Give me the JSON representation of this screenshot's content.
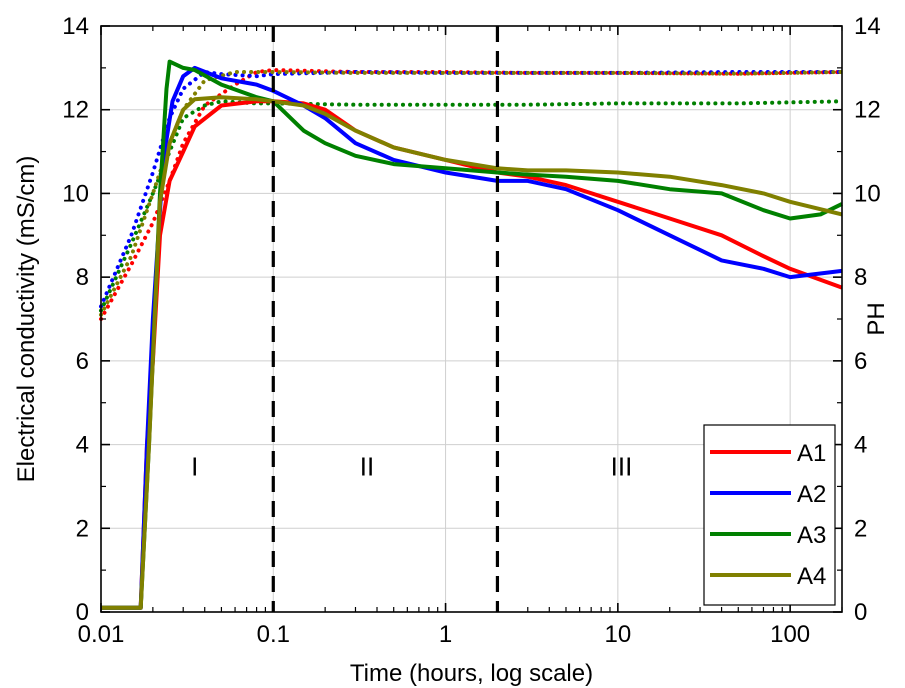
{
  "chart_data": {
    "type": "line",
    "xlabel": "Time (hours, log scale)",
    "ylabel_left": "Electrical conductivity (mS/cm)",
    "ylabel_right": "PH",
    "x_scale": "log",
    "xlim": [
      0.01,
      200
    ],
    "ylim_left": [
      0,
      14
    ],
    "ylim_right": [
      0,
      14
    ],
    "grid": true,
    "legend_position": "bottom-right",
    "x_ticks": [
      "0.01",
      "0.1",
      "1",
      "10",
      "100"
    ],
    "y_ticks": [
      "0",
      "2",
      "4",
      "6",
      "8",
      "10",
      "12",
      "14"
    ],
    "phase_boundaries_hours": [
      0.1,
      2
    ],
    "phase_labels": [
      {
        "text": "I",
        "x": 0.035,
        "y": 3.5
      },
      {
        "text": "II",
        "x": 0.35,
        "y": 3.5
      },
      {
        "text": "III",
        "x": 10.5,
        "y": 3.5
      }
    ],
    "series": [
      {
        "name": "A1",
        "color": "#ff0000",
        "conductivity": [
          [
            0.01,
            0.1
          ],
          [
            0.017,
            0.1
          ],
          [
            0.0185,
            4
          ],
          [
            0.02,
            6
          ],
          [
            0.022,
            9
          ],
          [
            0.025,
            10.3
          ],
          [
            0.03,
            11
          ],
          [
            0.035,
            11.6
          ],
          [
            0.05,
            12.1
          ],
          [
            0.08,
            12.2
          ],
          [
            0.1,
            12.2
          ],
          [
            0.15,
            12.15
          ],
          [
            0.2,
            12
          ],
          [
            0.3,
            11.5
          ],
          [
            0.5,
            11.1
          ],
          [
            1,
            10.8
          ],
          [
            2,
            10.5
          ],
          [
            3,
            10.4
          ],
          [
            5,
            10.2
          ],
          [
            10,
            9.8
          ],
          [
            20,
            9.4
          ],
          [
            40,
            9.0
          ],
          [
            70,
            8.5
          ],
          [
            100,
            8.2
          ],
          [
            200,
            7.75
          ]
        ],
        "ph": [
          [
            0.01,
            7.0
          ],
          [
            0.015,
            8.3
          ],
          [
            0.02,
            9.3
          ],
          [
            0.025,
            10.3
          ],
          [
            0.03,
            11.2
          ],
          [
            0.04,
            12.1
          ],
          [
            0.06,
            12.6
          ],
          [
            0.08,
            12.9
          ],
          [
            0.1,
            12.95
          ],
          [
            0.3,
            12.9
          ],
          [
            1,
            12.9
          ],
          [
            3,
            12.88
          ],
          [
            10,
            12.88
          ],
          [
            50,
            12.86
          ],
          [
            200,
            12.9
          ]
        ]
      },
      {
        "name": "A2",
        "color": "#0000ff",
        "conductivity": [
          [
            0.01,
            0.1
          ],
          [
            0.017,
            0.1
          ],
          [
            0.0185,
            4
          ],
          [
            0.02,
            7
          ],
          [
            0.023,
            10.8
          ],
          [
            0.026,
            12.2
          ],
          [
            0.03,
            12.8
          ],
          [
            0.035,
            13.0
          ],
          [
            0.05,
            12.75
          ],
          [
            0.08,
            12.6
          ],
          [
            0.1,
            12.45
          ],
          [
            0.15,
            12.1
          ],
          [
            0.2,
            11.8
          ],
          [
            0.3,
            11.2
          ],
          [
            0.5,
            10.8
          ],
          [
            1,
            10.5
          ],
          [
            2,
            10.3
          ],
          [
            3,
            10.3
          ],
          [
            5,
            10.1
          ],
          [
            10,
            9.6
          ],
          [
            20,
            9.0
          ],
          [
            40,
            8.4
          ],
          [
            70,
            8.2
          ],
          [
            100,
            8.0
          ],
          [
            200,
            8.15
          ]
        ],
        "ph": [
          [
            0.01,
            7.3
          ],
          [
            0.015,
            9.0
          ],
          [
            0.02,
            10.5
          ],
          [
            0.025,
            11.8
          ],
          [
            0.03,
            12.5
          ],
          [
            0.04,
            12.9
          ],
          [
            0.05,
            12.85
          ],
          [
            0.08,
            12.8
          ],
          [
            0.1,
            12.85
          ],
          [
            0.3,
            12.9
          ],
          [
            1,
            12.88
          ],
          [
            3,
            12.88
          ],
          [
            10,
            12.88
          ],
          [
            50,
            12.9
          ],
          [
            200,
            12.9
          ]
        ]
      },
      {
        "name": "A3",
        "color": "#008000",
        "conductivity": [
          [
            0.01,
            0.1
          ],
          [
            0.017,
            0.1
          ],
          [
            0.019,
            4
          ],
          [
            0.022,
            10
          ],
          [
            0.024,
            12.5
          ],
          [
            0.025,
            13.15
          ],
          [
            0.03,
            13.0
          ],
          [
            0.035,
            12.95
          ],
          [
            0.05,
            12.6
          ],
          [
            0.08,
            12.3
          ],
          [
            0.1,
            12.2
          ],
          [
            0.15,
            11.5
          ],
          [
            0.2,
            11.2
          ],
          [
            0.3,
            10.9
          ],
          [
            0.5,
            10.7
          ],
          [
            1,
            10.6
          ],
          [
            2,
            10.5
          ],
          [
            3,
            10.45
          ],
          [
            5,
            10.4
          ],
          [
            10,
            10.3
          ],
          [
            20,
            10.1
          ],
          [
            40,
            10.0
          ],
          [
            70,
            9.6
          ],
          [
            100,
            9.4
          ],
          [
            150,
            9.5
          ],
          [
            200,
            9.75
          ]
        ],
        "ph": [
          [
            0.01,
            7.2
          ],
          [
            0.015,
            8.8
          ],
          [
            0.02,
            10.0
          ],
          [
            0.025,
            11.0
          ],
          [
            0.03,
            11.8
          ],
          [
            0.04,
            12.1
          ],
          [
            0.05,
            12.2
          ],
          [
            0.08,
            12.15
          ],
          [
            0.1,
            12.15
          ],
          [
            0.3,
            12.12
          ],
          [
            1,
            12.12
          ],
          [
            3,
            12.12
          ],
          [
            10,
            12.15
          ],
          [
            50,
            12.15
          ],
          [
            200,
            12.2
          ]
        ]
      },
      {
        "name": "A4",
        "color": "#808000",
        "conductivity": [
          [
            0.01,
            0.1
          ],
          [
            0.017,
            0.1
          ],
          [
            0.019,
            4
          ],
          [
            0.022,
            9.8
          ],
          [
            0.025,
            11.2
          ],
          [
            0.028,
            11.7
          ],
          [
            0.03,
            12.0
          ],
          [
            0.035,
            12.25
          ],
          [
            0.05,
            12.3
          ],
          [
            0.08,
            12.25
          ],
          [
            0.1,
            12.2
          ],
          [
            0.15,
            12.1
          ],
          [
            0.2,
            11.9
          ],
          [
            0.3,
            11.5
          ],
          [
            0.5,
            11.1
          ],
          [
            1,
            10.8
          ],
          [
            2,
            10.6
          ],
          [
            3,
            10.55
          ],
          [
            5,
            10.55
          ],
          [
            10,
            10.5
          ],
          [
            20,
            10.4
          ],
          [
            40,
            10.2
          ],
          [
            70,
            10.0
          ],
          [
            100,
            9.8
          ],
          [
            200,
            9.5
          ]
        ],
        "ph": [
          [
            0.01,
            7.1
          ],
          [
            0.015,
            8.5
          ],
          [
            0.02,
            10.0
          ],
          [
            0.025,
            11.2
          ],
          [
            0.03,
            12.0
          ],
          [
            0.04,
            12.7
          ],
          [
            0.06,
            12.9
          ],
          [
            0.1,
            12.9
          ],
          [
            0.3,
            12.88
          ],
          [
            1,
            12.88
          ],
          [
            3,
            12.88
          ],
          [
            10,
            12.88
          ],
          [
            50,
            12.86
          ],
          [
            200,
            12.9
          ]
        ]
      }
    ]
  }
}
